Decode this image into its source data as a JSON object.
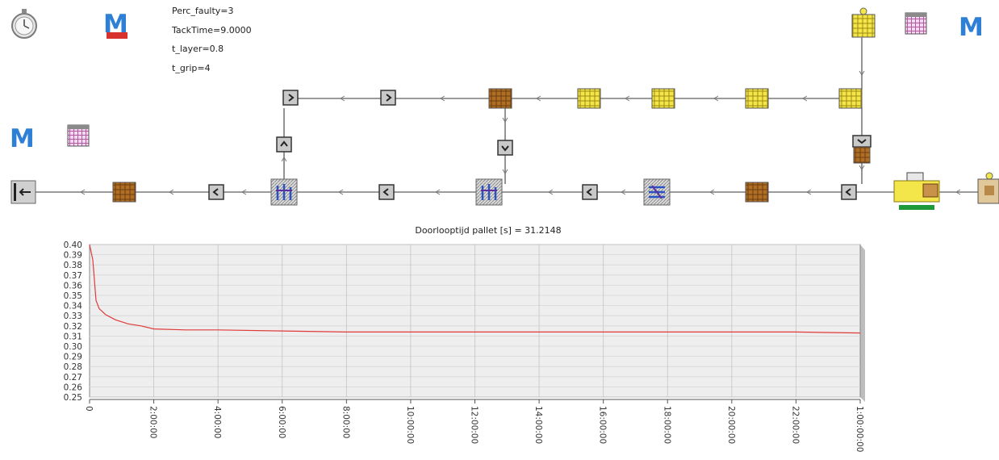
{
  "params": {
    "perc_faulty": "Perc_faulty=3",
    "tack_time": "TackTime=9.0000",
    "t_layer": "t_layer=0.8",
    "t_grip": "t_grip=4"
  },
  "icons": {
    "stopwatch": "stopwatch-icon",
    "method_red": "method-icon",
    "method_blue": "method-icon",
    "table": "table-icon",
    "pallet_yellow": "pallet-icon",
    "pallet_brown": "pallet-icon",
    "conveyor": "conveyor-icon",
    "robot": "robot-icon",
    "source": "source-icon",
    "drain": "drain-icon"
  },
  "colors": {
    "curve": "#e03a3a",
    "plot_bg": "#eeeeee",
    "yellow": "#f2e64a",
    "brown": "#a7641e",
    "method_blue": "#2e7fd6",
    "method_red": "#d8322e"
  },
  "chart_data": {
    "type": "line",
    "title": "Doorlooptijd pallet [s] = 31.2148",
    "xlabel": "",
    "ylabel": "",
    "yticks": [
      "0.40",
      "0.39",
      "0.38",
      "0.37",
      "0.36",
      "0.35",
      "0.34",
      "0.33",
      "0.32",
      "0.31",
      "0.30",
      "0.29",
      "0.28",
      "0.27",
      "0.26",
      "0.25"
    ],
    "ylim": [
      0.25,
      0.4
    ],
    "xticks": [
      "0",
      "2:00:00",
      "4:00:00",
      "6:00:00",
      "8:00:00",
      "10:00:00",
      "12:00:00",
      "14:00:00",
      "16:00:00",
      "18:00:00",
      "20:00:00",
      "22:00:00",
      "1:00:00:00"
    ],
    "xlim_hours": [
      0,
      24
    ],
    "grid": true,
    "series": [
      {
        "values_x_hours": [
          0,
          0.1,
          0.2,
          0.3,
          0.5,
          0.8,
          1.2,
          1.6,
          2,
          3,
          4,
          6,
          8,
          10,
          12,
          14,
          16,
          18,
          20,
          22,
          24
        ],
        "values_y": [
          0.4,
          0.385,
          0.345,
          0.337,
          0.331,
          0.326,
          0.322,
          0.32,
          0.317,
          0.316,
          0.316,
          0.315,
          0.314,
          0.314,
          0.314,
          0.314,
          0.314,
          0.314,
          0.314,
          0.314,
          0.313
        ]
      }
    ]
  }
}
